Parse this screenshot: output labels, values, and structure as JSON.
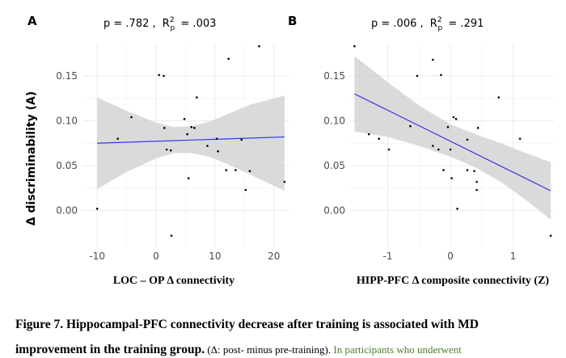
{
  "panels": [
    {
      "letter": "A",
      "stats": {
        "p_text": "p = .782 ,",
        "r2_main": "R",
        "r2_sup": "2",
        "r2_sub": "p",
        "r2_value": "= .003"
      },
      "ylabel": "Δ discriminability (A)"
    },
    {
      "letter": "B",
      "stats": {
        "p_text": "p = .006 ,",
        "r2_main": "R",
        "r2_sup": "2",
        "r2_sub": "p",
        "r2_value": "= .291"
      }
    }
  ],
  "chart_data": [
    {
      "type": "scatter",
      "xlabel": "LOC – OP Δ connectivity",
      "ylabel": "Δ discriminability (A)",
      "xlim": [
        -12.5,
        22.5
      ],
      "ylim": [
        -0.04,
        0.185
      ],
      "xticks": [
        -10,
        0,
        10,
        20
      ],
      "yticks": [
        0.0,
        0.05,
        0.1,
        0.15
      ],
      "ytick_labels": [
        "0.00",
        "0.05",
        "0.10",
        "0.15"
      ],
      "grid": true,
      "points": [
        {
          "x": -10.0,
          "y": 0.002
        },
        {
          "x": -6.5,
          "y": 0.08
        },
        {
          "x": -4.2,
          "y": 0.104
        },
        {
          "x": 0.5,
          "y": 0.151
        },
        {
          "x": 1.3,
          "y": 0.15
        },
        {
          "x": 1.4,
          "y": 0.092
        },
        {
          "x": 1.8,
          "y": 0.068
        },
        {
          "x": 2.5,
          "y": 0.067
        },
        {
          "x": 2.6,
          "y": -0.028
        },
        {
          "x": 4.8,
          "y": 0.102
        },
        {
          "x": 5.3,
          "y": 0.085
        },
        {
          "x": 5.5,
          "y": 0.036
        },
        {
          "x": 6.0,
          "y": 0.093
        },
        {
          "x": 6.5,
          "y": 0.092
        },
        {
          "x": 6.9,
          "y": 0.126
        },
        {
          "x": 8.7,
          "y": 0.072
        },
        {
          "x": 10.3,
          "y": 0.08
        },
        {
          "x": 10.5,
          "y": 0.066
        },
        {
          "x": 11.9,
          "y": 0.045
        },
        {
          "x": 12.3,
          "y": 0.169
        },
        {
          "x": 13.5,
          "y": 0.045
        },
        {
          "x": 14.5,
          "y": 0.079
        },
        {
          "x": 15.2,
          "y": 0.023
        },
        {
          "x": 15.9,
          "y": 0.044
        },
        {
          "x": 17.5,
          "y": 0.183
        },
        {
          "x": 21.8,
          "y": 0.032
        }
      ],
      "fit": {
        "x": [
          -10.0,
          21.8
        ],
        "y": [
          0.075,
          0.082
        ]
      },
      "ci_band": {
        "x": [
          -10.0,
          -5.0,
          0.0,
          3.0,
          6.0,
          9.0,
          12.0,
          16.0,
          21.8
        ],
        "lower": [
          0.024,
          0.043,
          0.058,
          0.064,
          0.064,
          0.06,
          0.052,
          0.04,
          0.022
        ],
        "upper": [
          0.126,
          0.111,
          0.098,
          0.093,
          0.094,
          0.099,
          0.107,
          0.118,
          0.128
        ]
      }
    },
    {
      "type": "scatter",
      "xlabel": "HIPP-PFC Δ composite connectivity (Z)",
      "xlim": [
        -1.6,
        1.65
      ],
      "ylim": [
        -0.04,
        0.185
      ],
      "xticks": [
        -1,
        0,
        1
      ],
      "yticks": [
        0.0,
        0.05,
        0.1,
        0.15
      ],
      "ytick_labels": [
        "0.00",
        "0.05",
        "0.10",
        "0.15"
      ],
      "grid": true,
      "points": [
        {
          "x": -1.53,
          "y": 0.183
        },
        {
          "x": -1.3,
          "y": 0.085
        },
        {
          "x": -1.14,
          "y": 0.08
        },
        {
          "x": -0.98,
          "y": 0.068
        },
        {
          "x": -0.64,
          "y": 0.094
        },
        {
          "x": -0.53,
          "y": 0.15
        },
        {
          "x": -0.28,
          "y": 0.168
        },
        {
          "x": -0.28,
          "y": 0.072
        },
        {
          "x": -0.19,
          "y": 0.068
        },
        {
          "x": -0.15,
          "y": 0.151
        },
        {
          "x": -0.11,
          "y": 0.045
        },
        {
          "x": -0.04,
          "y": 0.093
        },
        {
          "x": 0.0,
          "y": 0.068
        },
        {
          "x": 0.02,
          "y": 0.036
        },
        {
          "x": 0.05,
          "y": 0.104
        },
        {
          "x": 0.09,
          "y": 0.102
        },
        {
          "x": 0.11,
          "y": 0.002
        },
        {
          "x": 0.27,
          "y": 0.079
        },
        {
          "x": 0.27,
          "y": 0.045
        },
        {
          "x": 0.38,
          "y": 0.044
        },
        {
          "x": 0.42,
          "y": 0.032
        },
        {
          "x": 0.42,
          "y": 0.023
        },
        {
          "x": 0.44,
          "y": 0.092
        },
        {
          "x": 0.77,
          "y": 0.126
        },
        {
          "x": 1.11,
          "y": 0.08
        },
        {
          "x": 1.6,
          "y": -0.028
        }
      ],
      "fit": {
        "x": [
          -1.53,
          1.6
        ],
        "y": [
          0.13,
          0.022
        ]
      },
      "ci_band": {
        "x": [
          -1.53,
          -1.0,
          -0.5,
          0.0,
          0.4,
          0.8,
          1.2,
          1.6
        ],
        "lower": [
          0.088,
          0.082,
          0.072,
          0.06,
          0.048,
          0.032,
          0.012,
          -0.01
        ],
        "upper": [
          0.172,
          0.143,
          0.117,
          0.096,
          0.085,
          0.075,
          0.064,
          0.054
        ]
      }
    }
  ],
  "colors": {
    "fit_line": "#3333ee",
    "ci_band": "#d4d4d4",
    "grid": "#ebebeb",
    "points": "#000000",
    "tick_text": "#4d4d4d"
  },
  "caption": {
    "line1": "Figure 7. Hippocampal-PFC connectivity decrease after training is associated with MD",
    "line2_bold": "improvement in the training group.",
    "line2_paren": " (Δ: post- minus pre-training). ",
    "line2_green": "In participants who underwent"
  }
}
